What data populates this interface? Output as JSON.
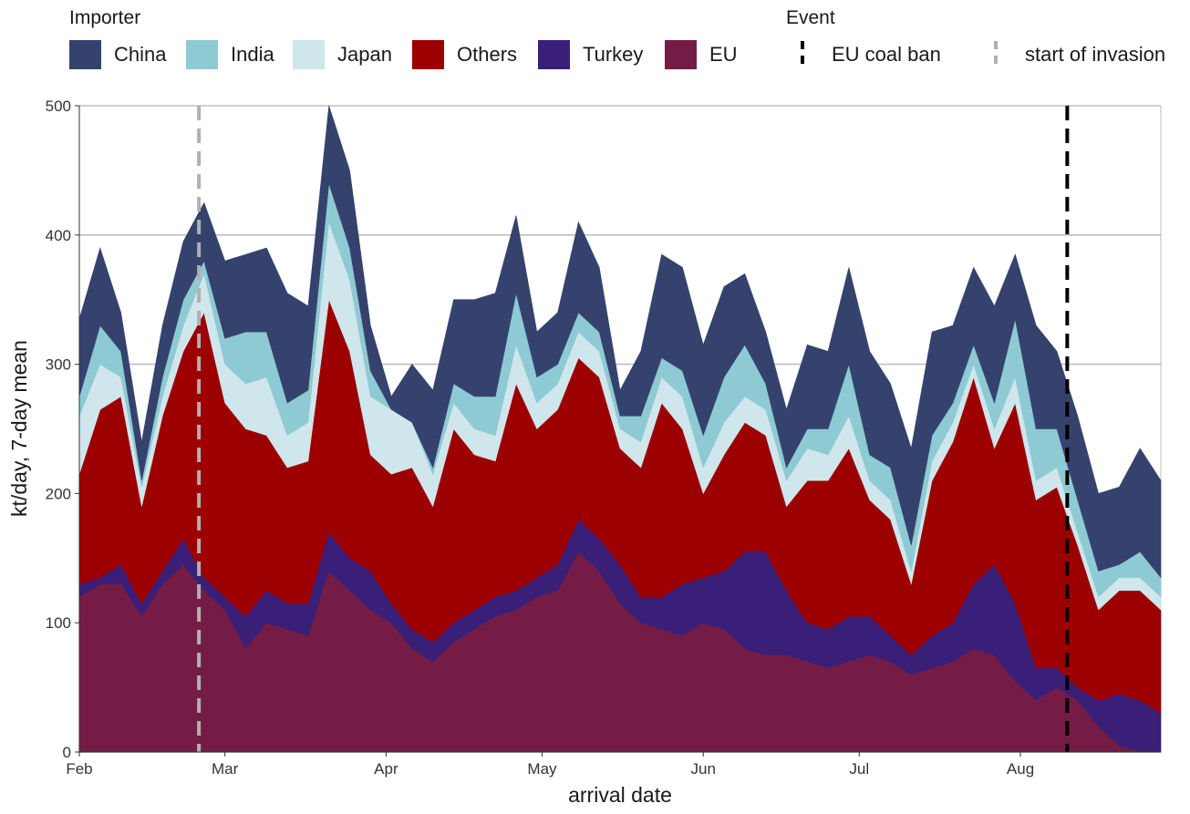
{
  "chart_data": {
    "type": "area",
    "stacked": true,
    "title": "",
    "xlabel": "arrival date",
    "ylabel": "kt/day, 7-day mean",
    "ylim": [
      0,
      500
    ],
    "y_ticks": [
      0,
      100,
      200,
      300,
      400,
      500
    ],
    "x_range": [
      "2022-02-01",
      "2022-08-28"
    ],
    "x_ticks": [
      {
        "date": "2022-02-01",
        "label": "Feb"
      },
      {
        "date": "2022-03-01",
        "label": "Mar"
      },
      {
        "date": "2022-04-01",
        "label": "Apr"
      },
      {
        "date": "2022-05-01",
        "label": "May"
      },
      {
        "date": "2022-06-01",
        "label": "Jun"
      },
      {
        "date": "2022-07-01",
        "label": "Jul"
      },
      {
        "date": "2022-08-01",
        "label": "Aug"
      }
    ],
    "grid": "horizontal major",
    "legend_position": "top",
    "legend_importer_title": "Importer",
    "legend_event_title": "Event",
    "legend_importer_order": [
      "China",
      "India",
      "Japan",
      "Others",
      "Turkey",
      "EU"
    ],
    "stack_order_bottom_to_top": [
      "EU",
      "Turkey",
      "Others",
      "Japan",
      "India",
      "China"
    ],
    "colors": {
      "China": "#35426e",
      "India": "#8ecad3",
      "Japan": "#cfe6ec",
      "Others": "#9c0000",
      "Turkey": "#3a1f78",
      "EU": "#741c45"
    },
    "events": [
      {
        "name": "EU coal ban",
        "date": "2022-08-10",
        "color": "#000000",
        "style": "dashed"
      },
      {
        "name": "start of invasion",
        "date": "2022-02-24",
        "color": "#b0b0b0",
        "style": "dashed"
      }
    ],
    "x": [
      "2022-02-01",
      "2022-02-05",
      "2022-02-09",
      "2022-02-13",
      "2022-02-17",
      "2022-02-21",
      "2022-02-25",
      "2022-03-01",
      "2022-03-05",
      "2022-03-09",
      "2022-03-13",
      "2022-03-17",
      "2022-03-21",
      "2022-03-25",
      "2022-03-29",
      "2022-04-02",
      "2022-04-06",
      "2022-04-10",
      "2022-04-14",
      "2022-04-18",
      "2022-04-22",
      "2022-04-26",
      "2022-04-30",
      "2022-05-04",
      "2022-05-08",
      "2022-05-12",
      "2022-05-16",
      "2022-05-20",
      "2022-05-24",
      "2022-05-28",
      "2022-06-01",
      "2022-06-05",
      "2022-06-09",
      "2022-06-13",
      "2022-06-17",
      "2022-06-21",
      "2022-06-25",
      "2022-06-29",
      "2022-07-03",
      "2022-07-07",
      "2022-07-11",
      "2022-07-15",
      "2022-07-19",
      "2022-07-23",
      "2022-07-27",
      "2022-07-31",
      "2022-08-04",
      "2022-08-08",
      "2022-08-12",
      "2022-08-16",
      "2022-08-20",
      "2022-08-24",
      "2022-08-28"
    ],
    "series": [
      {
        "name": "EU",
        "values": [
          120,
          130,
          130,
          105,
          130,
          145,
          125,
          110,
          80,
          100,
          95,
          90,
          140,
          125,
          110,
          100,
          80,
          70,
          85,
          95,
          105,
          110,
          120,
          125,
          155,
          140,
          115,
          100,
          95,
          90,
          100,
          95,
          80,
          75,
          75,
          70,
          65,
          70,
          75,
          70,
          60,
          65,
          70,
          80,
          75,
          55,
          40,
          50,
          40,
          20,
          5,
          0,
          0
        ]
      },
      {
        "name": "Turkey",
        "values": [
          10,
          5,
          15,
          10,
          10,
          20,
          10,
          10,
          25,
          25,
          20,
          25,
          30,
          25,
          30,
          15,
          15,
          15,
          15,
          15,
          15,
          15,
          15,
          20,
          25,
          25,
          30,
          20,
          25,
          40,
          35,
          45,
          75,
          80,
          50,
          30,
          30,
          35,
          30,
          20,
          15,
          25,
          30,
          50,
          70,
          60,
          25,
          15,
          10,
          20,
          40,
          40,
          30
        ]
      },
      {
        "name": "Others",
        "values": [
          85,
          130,
          130,
          75,
          120,
          145,
          205,
          150,
          145,
          120,
          105,
          110,
          180,
          160,
          90,
          100,
          125,
          105,
          150,
          120,
          105,
          160,
          115,
          120,
          125,
          125,
          90,
          100,
          150,
          120,
          65,
          90,
          100,
          90,
          65,
          110,
          115,
          130,
          90,
          90,
          55,
          120,
          140,
          160,
          90,
          155,
          130,
          140,
          110,
          70,
          80,
          85,
          80
        ]
      },
      {
        "name": "Japan",
        "values": [
          45,
          35,
          15,
          15,
          15,
          20,
          30,
          30,
          35,
          45,
          25,
          30,
          60,
          55,
          45,
          50,
          35,
          25,
          20,
          20,
          20,
          30,
          20,
          20,
          20,
          20,
          15,
          20,
          20,
          25,
          20,
          25,
          20,
          20,
          20,
          25,
          20,
          25,
          15,
          15,
          10,
          15,
          15,
          10,
          15,
          20,
          15,
          15,
          10,
          10,
          10,
          10,
          10
        ]
      },
      {
        "name": "India",
        "values": [
          15,
          30,
          20,
          5,
          15,
          20,
          10,
          20,
          40,
          35,
          25,
          25,
          30,
          25,
          20,
          0,
          0,
          5,
          15,
          25,
          30,
          40,
          20,
          15,
          15,
          15,
          10,
          20,
          15,
          20,
          25,
          35,
          40,
          20,
          10,
          15,
          20,
          40,
          20,
          25,
          20,
          20,
          15,
          15,
          20,
          45,
          40,
          30,
          25,
          20,
          10,
          20,
          15
        ]
      },
      {
        "name": "China",
        "values": [
          60,
          60,
          30,
          30,
          40,
          45,
          45,
          60,
          60,
          65,
          85,
          65,
          60,
          60,
          35,
          10,
          45,
          60,
          65,
          75,
          80,
          60,
          35,
          40,
          70,
          50,
          20,
          50,
          80,
          80,
          70,
          70,
          55,
          40,
          45,
          65,
          60,
          75,
          80,
          65,
          75,
          80,
          60,
          60,
          75,
          50,
          80,
          60,
          65,
          60,
          60,
          80,
          75
        ]
      }
    ]
  }
}
